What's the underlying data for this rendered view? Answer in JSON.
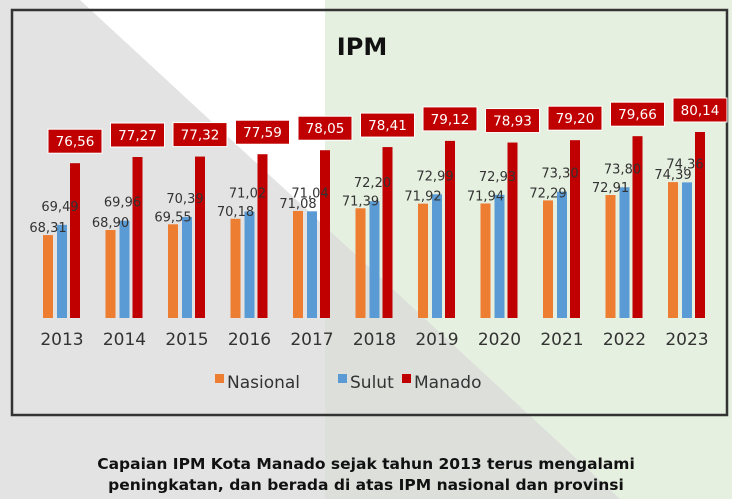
{
  "chart_data": {
    "type": "bar",
    "title": "IPM",
    "xlabel": "",
    "ylabel": "",
    "ylim": [
      58.8,
      82
    ],
    "legend_position": "bottom",
    "categories": [
      "2013",
      "2014",
      "2015",
      "2016",
      "2017",
      "2018",
      "2019",
      "2020",
      "2021",
      "2022",
      "2023"
    ],
    "series": [
      {
        "name": "Nasional",
        "color": "#ed7d31",
        "values": [
          68.31,
          68.9,
          69.55,
          70.18,
          71.08,
          71.39,
          71.92,
          71.94,
          72.29,
          72.91,
          74.39
        ],
        "labels": [
          "68,31",
          "68,90",
          "69,55",
          "70,18",
          "71,08",
          "71,39",
          "71,92",
          "71,94",
          "72,29",
          "72,91",
          "74,39"
        ]
      },
      {
        "name": "Sulut",
        "color": "#5b9bd5",
        "values": [
          69.49,
          69.96,
          70.39,
          71.02,
          71.04,
          72.2,
          72.99,
          72.93,
          73.3,
          73.8,
          74.36
        ],
        "labels": [
          "69,49",
          "69,96",
          "70,39",
          "71,02",
          "71,04",
          "72,20",
          "72,99",
          "72,93",
          "73,30",
          "73,80",
          "74,36"
        ]
      },
      {
        "name": "Manado",
        "color": "#c00000",
        "values": [
          76.56,
          77.27,
          77.32,
          77.59,
          78.05,
          78.41,
          79.12,
          78.93,
          79.2,
          79.66,
          80.14
        ],
        "labels": [
          "76,56",
          "77,27",
          "77,32",
          "77,59",
          "78,05",
          "78,41",
          "79,12",
          "78,93",
          "79,20",
          "79,66",
          "80,14"
        ]
      }
    ]
  },
  "caption": {
    "line1": "Capaian IPM Kota Manado sejak tahun 2013 terus mengalami",
    "line2": "peningkatan, dan berada di atas IPM nasional dan provinsi"
  }
}
